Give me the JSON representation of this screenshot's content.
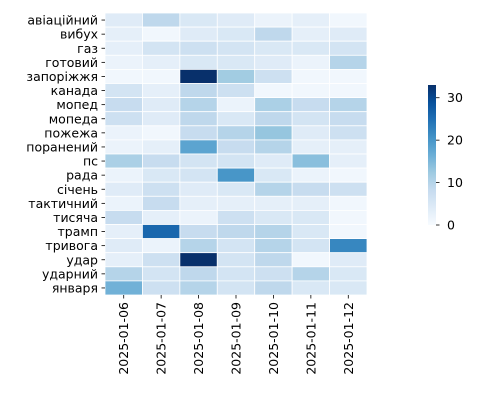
{
  "chart_data": {
    "type": "heatmap",
    "title": "",
    "xlabel": "",
    "ylabel": "",
    "rows": [
      "авіаційний",
      "вибух",
      "газ",
      "готовий",
      "запоріжжя",
      "канада",
      "мопед",
      "мопеда",
      "пожежа",
      "поранений",
      "пс",
      "рада",
      "січень",
      "тактичний",
      "тисяча",
      "трамп",
      "тривога",
      "удар",
      "ударний",
      "января"
    ],
    "columns": [
      "2025-01-06",
      "2025-01-07",
      "2025-01-08",
      "2025-01-09",
      "2025-01-10",
      "2025-01-11",
      "2025-01-12"
    ],
    "values": [
      [
        4,
        9,
        5,
        4,
        2,
        3,
        1
      ],
      [
        3,
        1,
        4,
        5,
        9,
        3,
        4
      ],
      [
        3,
        6,
        7,
        6,
        5,
        5,
        6
      ],
      [
        2,
        3,
        5,
        5,
        4,
        2,
        10
      ],
      [
        1,
        1,
        33,
        12,
        7,
        1,
        1
      ],
      [
        6,
        3,
        9,
        7,
        1,
        1,
        1
      ],
      [
        8,
        4,
        10,
        2,
        11,
        8,
        10
      ],
      [
        7,
        4,
        9,
        5,
        9,
        6,
        8
      ],
      [
        2,
        1,
        8,
        10,
        13,
        4,
        7
      ],
      [
        2,
        3,
        18,
        8,
        10,
        3,
        3
      ],
      [
        11,
        8,
        6,
        6,
        4,
        14,
        3
      ],
      [
        2,
        5,
        6,
        20,
        5,
        2,
        1
      ],
      [
        4,
        7,
        4,
        5,
        10,
        8,
        7
      ],
      [
        2,
        8,
        3,
        3,
        3,
        3,
        1
      ],
      [
        8,
        3,
        2,
        7,
        5,
        5,
        1
      ],
      [
        3,
        26,
        8,
        9,
        10,
        5,
        1
      ],
      [
        4,
        2,
        10,
        6,
        10,
        6,
        22
      ],
      [
        3,
        7,
        34,
        6,
        9,
        1,
        4
      ],
      [
        10,
        6,
        9,
        6,
        7,
        10,
        5
      ],
      [
        16,
        7,
        10,
        6,
        9,
        5,
        5
      ]
    ],
    "colorbar": {
      "min": 0,
      "max": 33,
      "ticks": [
        0,
        10,
        20,
        30
      ]
    },
    "colormap": "Blues",
    "cmap_stops": [
      "#f7fbff",
      "#deebf7",
      "#c6dbef",
      "#9ecae1",
      "#6baed6",
      "#4292c6",
      "#2171b5",
      "#08519c",
      "#08306b"
    ],
    "cell_border_color": "#ffffff",
    "grid": false,
    "legend": "colorbar-right"
  }
}
